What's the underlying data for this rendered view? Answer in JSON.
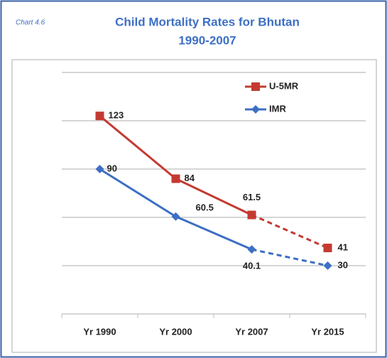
{
  "chart_data": {
    "type": "line",
    "chart_label": "Chart 4.6",
    "title": "Child Mortality Rates for Bhutan",
    "subtitle": "1990-2007",
    "categories": [
      "Yr 1990",
      "Yr 2000",
      "Yr 2007",
      "Yr 2015"
    ],
    "series": [
      {
        "name": "U-5MR",
        "color": "#c43a32",
        "marker": "square",
        "values": [
          123,
          84,
          61.5,
          41
        ],
        "dashed_after": 2
      },
      {
        "name": "IMR",
        "color": "#3d6fc4",
        "marker": "diamond",
        "values": [
          90,
          60.5,
          40.1,
          30
        ],
        "dashed_after": 2
      }
    ],
    "ylim": [
      0,
      150
    ],
    "yticks": [
      0,
      30,
      60,
      90,
      120,
      150
    ],
    "grid": true,
    "legend": "top-right"
  }
}
